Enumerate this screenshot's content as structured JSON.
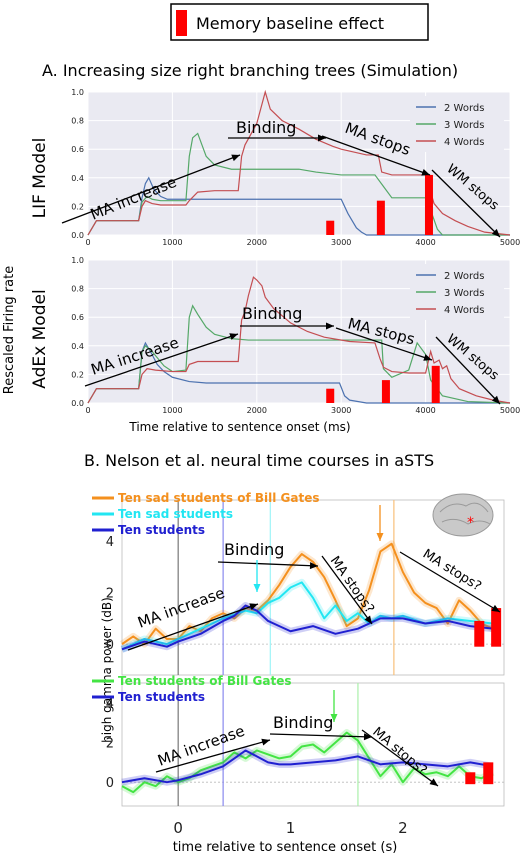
{
  "legend_box": {
    "label": "Memory baseline effect",
    "color": "#ff0000"
  },
  "panel_a": {
    "title": "A. Increasing size right branching trees (Simulation)",
    "ylabel": "Rescaled Firing rate",
    "xlabel": "Time relative to sentence onset (ms)"
  },
  "panel_b": {
    "title": "B. Nelson et al. neural time courses in aSTS",
    "ylabel": "high gamma power (dB)",
    "xlabel": "time relative to sentence onset (s)"
  },
  "annotations": {
    "ma_increase": "MA increase",
    "binding": "Binding",
    "ma_stops": "MA stops",
    "wm_stops": "WM stops",
    "ma_stops_q": "MA stops?"
  },
  "colors": {
    "blue": "#4c72b0",
    "green": "#55a868",
    "red": "#c44e52",
    "orange": "#f4901e",
    "cyan": "#22e6f2",
    "navy": "#2020d0",
    "lime": "#44e444",
    "bar": "#ff0000"
  },
  "chart_data": [
    {
      "type": "line",
      "panel": "LIF Model",
      "ylabel": "LIF Model",
      "xlim": [
        0,
        5000
      ],
      "ylim": [
        0,
        1.0
      ],
      "xticks": [
        "0",
        "1000",
        "2000",
        "3000",
        "4000",
        "5000"
      ],
      "yticks": [
        "0.0",
        "0.2",
        "0.4",
        "0.6",
        "0.8",
        "1.0"
      ],
      "legend": "top-right",
      "series": [
        {
          "name": "2 Words",
          "color": "#4c72b0",
          "x": [
            0,
            100,
            600,
            640,
            680,
            720,
            780,
            860,
            940,
            1200,
            1800,
            2600,
            3000,
            3080,
            3180,
            3240,
            3300,
            5000
          ],
          "y": [
            0,
            0.1,
            0.1,
            0.26,
            0.36,
            0.4,
            0.32,
            0.27,
            0.25,
            0.25,
            0.25,
            0.25,
            0.25,
            0.15,
            0.05,
            0.02,
            0,
            0
          ]
        },
        {
          "name": "3 Words",
          "color": "#55a868",
          "x": [
            0,
            100,
            600,
            640,
            700,
            760,
            860,
            940,
            1160,
            1200,
            1240,
            1300,
            1400,
            1500,
            1700,
            1800,
            2100,
            2500,
            2700,
            3000,
            3400,
            3500,
            3600,
            3900,
            4000,
            4080,
            4140,
            4200,
            5000
          ],
          "y": [
            0,
            0.1,
            0.1,
            0.23,
            0.27,
            0.25,
            0.24,
            0.24,
            0.24,
            0.55,
            0.68,
            0.71,
            0.55,
            0.49,
            0.46,
            0.46,
            0.46,
            0.46,
            0.44,
            0.42,
            0.42,
            0.34,
            0.26,
            0.26,
            0.26,
            0.14,
            0.04,
            0,
            0
          ]
        },
        {
          "name": "4 Words",
          "color": "#c44e52",
          "x": [
            0,
            100,
            600,
            640,
            680,
            760,
            860,
            1160,
            1200,
            1300,
            1500,
            1780,
            1820,
            1860,
            2000,
            2100,
            2160,
            2300,
            2500,
            2700,
            2900,
            3000,
            3300,
            3440,
            3480,
            3600,
            4000,
            4040,
            4100,
            4200,
            4350,
            4500,
            4700,
            5000
          ],
          "y": [
            0,
            0.1,
            0.1,
            0.2,
            0.24,
            0.22,
            0.21,
            0.21,
            0.24,
            0.3,
            0.31,
            0.31,
            0.55,
            0.63,
            0.78,
            1.0,
            0.88,
            0.8,
            0.74,
            0.67,
            0.62,
            0.6,
            0.56,
            0.56,
            0.44,
            0.42,
            0.42,
            0.34,
            0.22,
            0.15,
            0.1,
            0.06,
            0.02,
            0
          ]
        }
      ],
      "bars": [
        {
          "x": 2870,
          "value": 0.1
        },
        {
          "x": 3470,
          "value": 0.24
        },
        {
          "x": 4040,
          "value": 0.42
        }
      ],
      "annotations": [
        "MA increase",
        "Binding",
        "MA stops",
        "WM stops"
      ]
    },
    {
      "type": "line",
      "panel": "AdEx Model",
      "ylabel": "AdEx Model",
      "xlim": [
        0,
        5000
      ],
      "ylim": [
        0,
        1.0
      ],
      "xticks": [
        "0",
        "1000",
        "2000",
        "3000",
        "4000",
        "5000"
      ],
      "yticks": [
        "0.0",
        "0.2",
        "0.4",
        "0.6",
        "0.8",
        "1.0"
      ],
      "legend": "top-right",
      "series": [
        {
          "name": "2 Words",
          "color": "#4c72b0",
          "x": [
            0,
            100,
            600,
            640,
            680,
            740,
            820,
            900,
            1000,
            1200,
            1400,
            1800,
            2400,
            2980,
            3040,
            3100,
            3300,
            3600,
            5000
          ],
          "y": [
            0,
            0.1,
            0.1,
            0.36,
            0.42,
            0.36,
            0.27,
            0.22,
            0.18,
            0.15,
            0.14,
            0.14,
            0.14,
            0.14,
            0.05,
            0.02,
            0,
            0,
            0
          ]
        },
        {
          "name": "3 Words",
          "color": "#55a868",
          "x": [
            0,
            100,
            600,
            640,
            680,
            760,
            900,
            1000,
            1160,
            1200,
            1240,
            1300,
            1400,
            1500,
            1700,
            1900,
            2300,
            2900,
            3100,
            3400,
            3480,
            3500,
            3600,
            3800,
            3900,
            4000,
            4060,
            4200,
            4500,
            5000
          ],
          "y": [
            0,
            0.1,
            0.1,
            0.36,
            0.4,
            0.36,
            0.26,
            0.22,
            0.23,
            0.6,
            0.68,
            0.62,
            0.53,
            0.48,
            0.45,
            0.44,
            0.44,
            0.44,
            0.44,
            0.44,
            0.44,
            0.24,
            0.18,
            0.23,
            0.42,
            0.34,
            0.16,
            0.05,
            0.01,
            0
          ]
        },
        {
          "name": "4 Words",
          "color": "#c44e52",
          "x": [
            0,
            100,
            600,
            640,
            700,
            800,
            1000,
            1160,
            1200,
            1300,
            1500,
            1780,
            1820,
            1860,
            1900,
            1960,
            2000,
            2060,
            2100,
            2200,
            2400,
            2600,
            2800,
            3100,
            3400,
            3460,
            3500,
            3600,
            3800,
            4000,
            4060,
            4100,
            4160,
            4200,
            4250,
            4300,
            4400,
            4600,
            4800,
            5000
          ],
          "y": [
            0,
            0.1,
            0.1,
            0.2,
            0.24,
            0.23,
            0.22,
            0.22,
            0.27,
            0.29,
            0.29,
            0.29,
            0.58,
            0.64,
            0.75,
            0.88,
            0.86,
            0.82,
            0.74,
            0.66,
            0.56,
            0.5,
            0.46,
            0.43,
            0.42,
            0.31,
            0.25,
            0.22,
            0.21,
            0.21,
            0.36,
            0.28,
            0.3,
            0.24,
            0.26,
            0.17,
            0.1,
            0.05,
            0.02,
            0
          ]
        }
      ],
      "bars": [
        {
          "x": 2870,
          "value": 0.1
        },
        {
          "x": 3530,
          "value": 0.16
        },
        {
          "x": 4120,
          "value": 0.26
        }
      ],
      "annotations": [
        "MA increase",
        "Binding",
        "MA stops",
        "WM stops"
      ]
    },
    {
      "type": "line",
      "panel": "B top",
      "xlim": [
        -0.5,
        2.9
      ],
      "ylim": [
        -1.2,
        5.6
      ],
      "xticks": [
        "0",
        "1",
        "2"
      ],
      "yticks": [
        "0",
        "2",
        "4"
      ],
      "legend": "top-left",
      "series": [
        {
          "name": "Ten  sad students  of   Bill   Gates",
          "color": "#f4901e",
          "x": [
            -0.5,
            -0.4,
            -0.3,
            -0.2,
            -0.1,
            0,
            0.1,
            0.2,
            0.3,
            0.4,
            0.5,
            0.6,
            0.7,
            0.8,
            0.9,
            1.0,
            1.1,
            1.2,
            1.3,
            1.4,
            1.5,
            1.6,
            1.7,
            1.8,
            1.9,
            2.0,
            2.1,
            2.2,
            2.3,
            2.4,
            2.5,
            2.6,
            2.7,
            2.8
          ],
          "y": [
            0.0,
            0.3,
            0.0,
            0.6,
            0.2,
            0.2,
            0.7,
            0.5,
            1.0,
            1.2,
            1.0,
            1.4,
            1.3,
            1.7,
            2.3,
            3.0,
            3.5,
            3.2,
            2.6,
            1.7,
            0.7,
            1.0,
            2.1,
            3.6,
            3.9,
            2.8,
            2.0,
            1.6,
            1.4,
            0.8,
            1.7,
            1.3,
            0.8,
            0.6
          ]
        },
        {
          "name": "Ten    sad students",
          "color": "#22e6f2",
          "x": [
            -0.5,
            -0.3,
            -0.1,
            0,
            0.2,
            0.4,
            0.6,
            0.7,
            0.8,
            0.9,
            1.0,
            1.1,
            1.2,
            1.3,
            1.4,
            1.5,
            1.6,
            1.7,
            1.8,
            1.9,
            2.0,
            2.2,
            2.4,
            2.6,
            2.8
          ],
          "y": [
            -0.2,
            0.2,
            0.0,
            0.2,
            0.6,
            1.0,
            1.3,
            1.2,
            1.6,
            1.8,
            2.2,
            2.4,
            1.8,
            1.0,
            1.5,
            0.9,
            1.2,
            0.8,
            1.1,
            1.0,
            1.1,
            0.8,
            1.0,
            0.9,
            0.8
          ]
        },
        {
          "name": "Ten students",
          "color": "#2020d0",
          "x": [
            -0.5,
            -0.3,
            -0.1,
            0,
            0.2,
            0.4,
            0.5,
            0.6,
            0.7,
            0.8,
            0.9,
            1.0,
            1.2,
            1.4,
            1.6,
            1.8,
            2.0,
            2.2,
            2.4,
            2.6,
            2.8
          ],
          "y": [
            -0.2,
            0.1,
            -0.1,
            0.1,
            0.4,
            0.9,
            1.1,
            1.5,
            1.3,
            0.9,
            0.7,
            0.5,
            0.7,
            0.4,
            0.6,
            1.0,
            1.0,
            0.8,
            0.9,
            0.7,
            0.6
          ]
        }
      ],
      "bars": [
        {
          "x": 2.68,
          "value": 0.9
        },
        {
          "x": 2.83,
          "value": 1.4
        }
      ],
      "annotations": [
        "MA increase",
        "Binding",
        "MA stops?",
        "MA stops?"
      ]
    },
    {
      "type": "line",
      "panel": "B bottom",
      "xlim": [
        -0.5,
        2.9
      ],
      "ylim": [
        -1.2,
        5.0
      ],
      "xticks": [
        "0",
        "1",
        "2"
      ],
      "yticks": [
        "0",
        "2",
        "4"
      ],
      "legend": "top-left",
      "series": [
        {
          "name": "Ten students of    Bill   Gates",
          "color": "#44e444",
          "x": [
            -0.5,
            -0.4,
            -0.3,
            -0.2,
            -0.1,
            0,
            0.1,
            0.2,
            0.3,
            0.4,
            0.5,
            0.6,
            0.7,
            0.8,
            0.9,
            1.0,
            1.1,
            1.2,
            1.3,
            1.4,
            1.5,
            1.6,
            1.7,
            1.8,
            1.9,
            2.0,
            2.1,
            2.2,
            2.3,
            2.4,
            2.5,
            2.6,
            2.7,
            2.8
          ],
          "y": [
            -0.2,
            -0.5,
            0.0,
            -0.2,
            0.3,
            0.0,
            0.2,
            0.6,
            0.8,
            1.0,
            1.5,
            1.2,
            1.6,
            1.4,
            1.2,
            1.3,
            1.8,
            1.9,
            1.5,
            2.0,
            2.5,
            2.1,
            1.2,
            0.3,
            0.9,
            0.0,
            0.7,
            0.4,
            0.5,
            0.3,
            0.8,
            0.3,
            0.2,
            0.5
          ]
        },
        {
          "name": "Ten students",
          "color": "#2020d0",
          "x": [
            -0.5,
            -0.3,
            -0.1,
            0,
            0.2,
            0.4,
            0.5,
            0.6,
            0.7,
            0.8,
            0.9,
            1.0,
            1.2,
            1.4,
            1.6,
            1.8,
            2.0,
            2.2,
            2.4,
            2.6,
            2.8
          ],
          "y": [
            0.0,
            0.2,
            0.0,
            0.1,
            0.4,
            0.8,
            1.2,
            1.6,
            1.3,
            1.0,
            0.9,
            0.9,
            1.0,
            1.1,
            1.3,
            0.9,
            1.0,
            0.9,
            0.8,
            1.0,
            0.8
          ]
        }
      ],
      "bars": [
        {
          "x": 2.6,
          "value": 0.5
        },
        {
          "x": 2.76,
          "value": 1.0
        }
      ],
      "annotations": [
        "MA increase",
        "Binding",
        "MA stops?"
      ]
    }
  ]
}
